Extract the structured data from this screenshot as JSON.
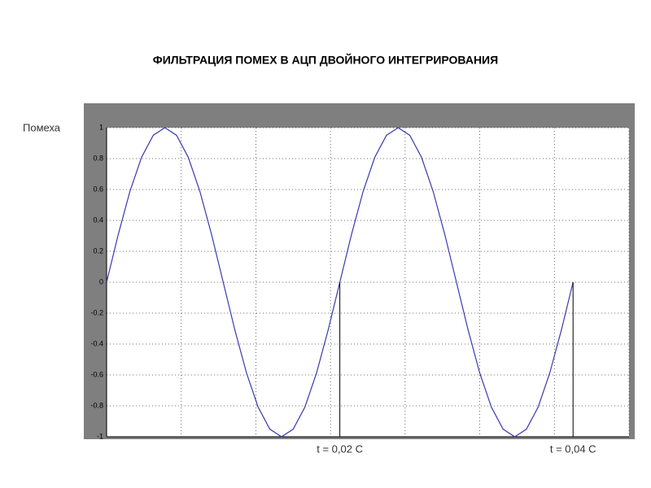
{
  "chart_data": {
    "type": "line",
    "title": "ФИЛЬТРАЦИЯ  ПОМЕХ  В  АЦП  ДВОЙНОГО  ИНТЕГРИРОВАНИЯ",
    "ylabel": "Помеха",
    "x": [
      0,
      15.625,
      31.25,
      46.875,
      62.5,
      78.125,
      93.75,
      109.375,
      125,
      140.625,
      156.25,
      171.875,
      187.5,
      203.125,
      218.75,
      234.375,
      250,
      265.625,
      281.25,
      296.875,
      312.5,
      328.125,
      343.75,
      359.375,
      375,
      390.625,
      406.25,
      421.875,
      437.5,
      453.125,
      468.75,
      484.375,
      500,
      515.625,
      531.25,
      546.875,
      562.5,
      578.125,
      593.75,
      609.375,
      625
    ],
    "values": [
      0,
      0.309,
      0.588,
      0.809,
      0.951,
      1,
      0.951,
      0.809,
      0.588,
      0.309,
      0,
      -0.309,
      -0.588,
      -0.809,
      -0.951,
      -1,
      -0.951,
      -0.809,
      -0.588,
      -0.309,
      0,
      0.309,
      0.588,
      0.809,
      0.951,
      1,
      0.951,
      0.809,
      0.588,
      0.309,
      0,
      -0.309,
      -0.588,
      -0.809,
      -0.951,
      -1,
      -0.951,
      -0.809,
      -0.588,
      -0.309,
      0
    ],
    "color": "#3a3ab0",
    "xlim": [
      0,
      700
    ],
    "xticks": [
      0,
      100,
      200,
      300,
      400,
      500,
      600,
      700
    ],
    "ylim": [
      -1,
      1
    ],
    "yticks": [
      -1,
      -0.8,
      -0.6,
      -0.4,
      -0.2,
      0,
      0.2,
      0.4,
      0.6,
      0.8,
      1
    ],
    "grid": true,
    "markers": [
      {
        "x": 312.5,
        "label": "t = 0,02 С"
      },
      {
        "x": 625,
        "label": "t = 0,04 С"
      }
    ]
  }
}
